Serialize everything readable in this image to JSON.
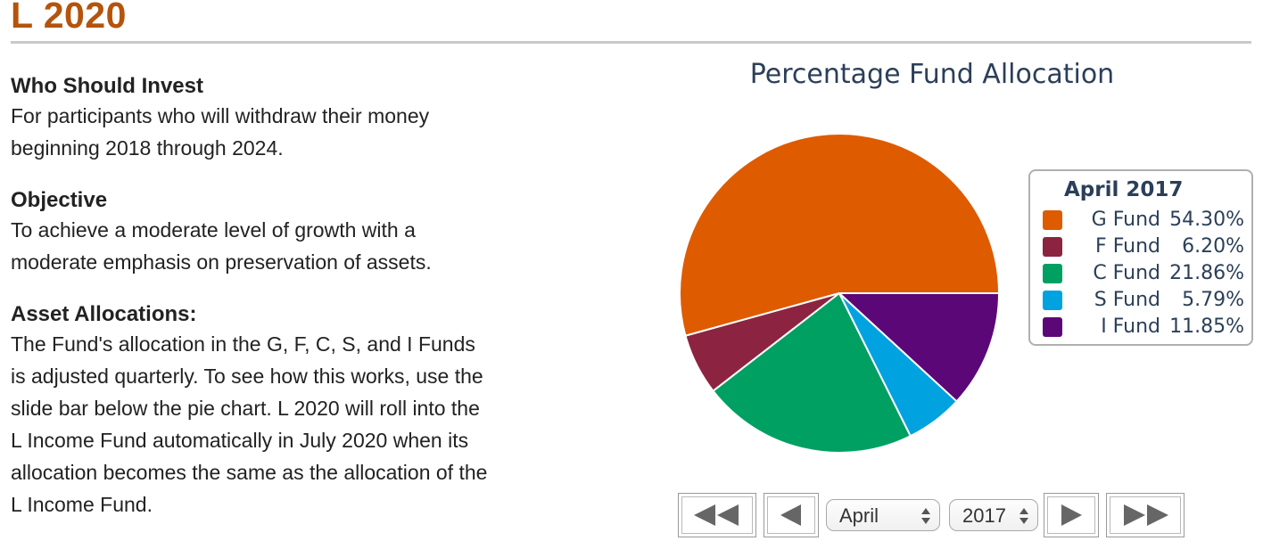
{
  "page": {
    "title": "L 2020"
  },
  "sections": [
    {
      "heading": "Who Should Invest",
      "lines": [
        "For participants who will withdraw their money",
        "beginning 2018 through 2024."
      ]
    },
    {
      "heading": "Objective",
      "lines": [
        "To achieve a moderate level of growth with a",
        "moderate emphasis on preservation of assets."
      ]
    },
    {
      "heading": "Asset Allocations:",
      "lines": [
        "The Fund's allocation in the G, F, C, S, and I Funds",
        "is adjusted quarterly. To see how this works, use the",
        "slide bar below the pie chart. L 2020 will roll into the",
        "L Income Fund automatically in July 2020 when its",
        "allocation becomes the same as the allocation of the",
        "L Income Fund."
      ]
    }
  ],
  "chart_data": {
    "type": "pie",
    "title": "Percentage Fund Allocation",
    "legend_title": "April 2017",
    "legend_position": "right",
    "slices": [
      {
        "name": "G Fund",
        "value": 54.3,
        "label": "54.30%",
        "color": "#de5b00"
      },
      {
        "name": "F Fund",
        "value": 6.2,
        "label": "6.20%",
        "color": "#8c2441"
      },
      {
        "name": "C Fund",
        "value": 21.86,
        "label": "21.86%",
        "color": "#00a062"
      },
      {
        "name": "S Fund",
        "value": 5.79,
        "label": "5.79%",
        "color": "#00a2e0"
      },
      {
        "name": "I Fund",
        "value": 11.85,
        "label": "11.85%",
        "color": "#5c0778"
      }
    ]
  },
  "controls": {
    "first_icon": "double-left-triangle-icon",
    "prev_icon": "left-triangle-icon",
    "next_icon": "right-triangle-icon",
    "last_icon": "double-right-triangle-icon",
    "month_value": "April",
    "year_value": "2017",
    "icon_color": "#666666"
  }
}
